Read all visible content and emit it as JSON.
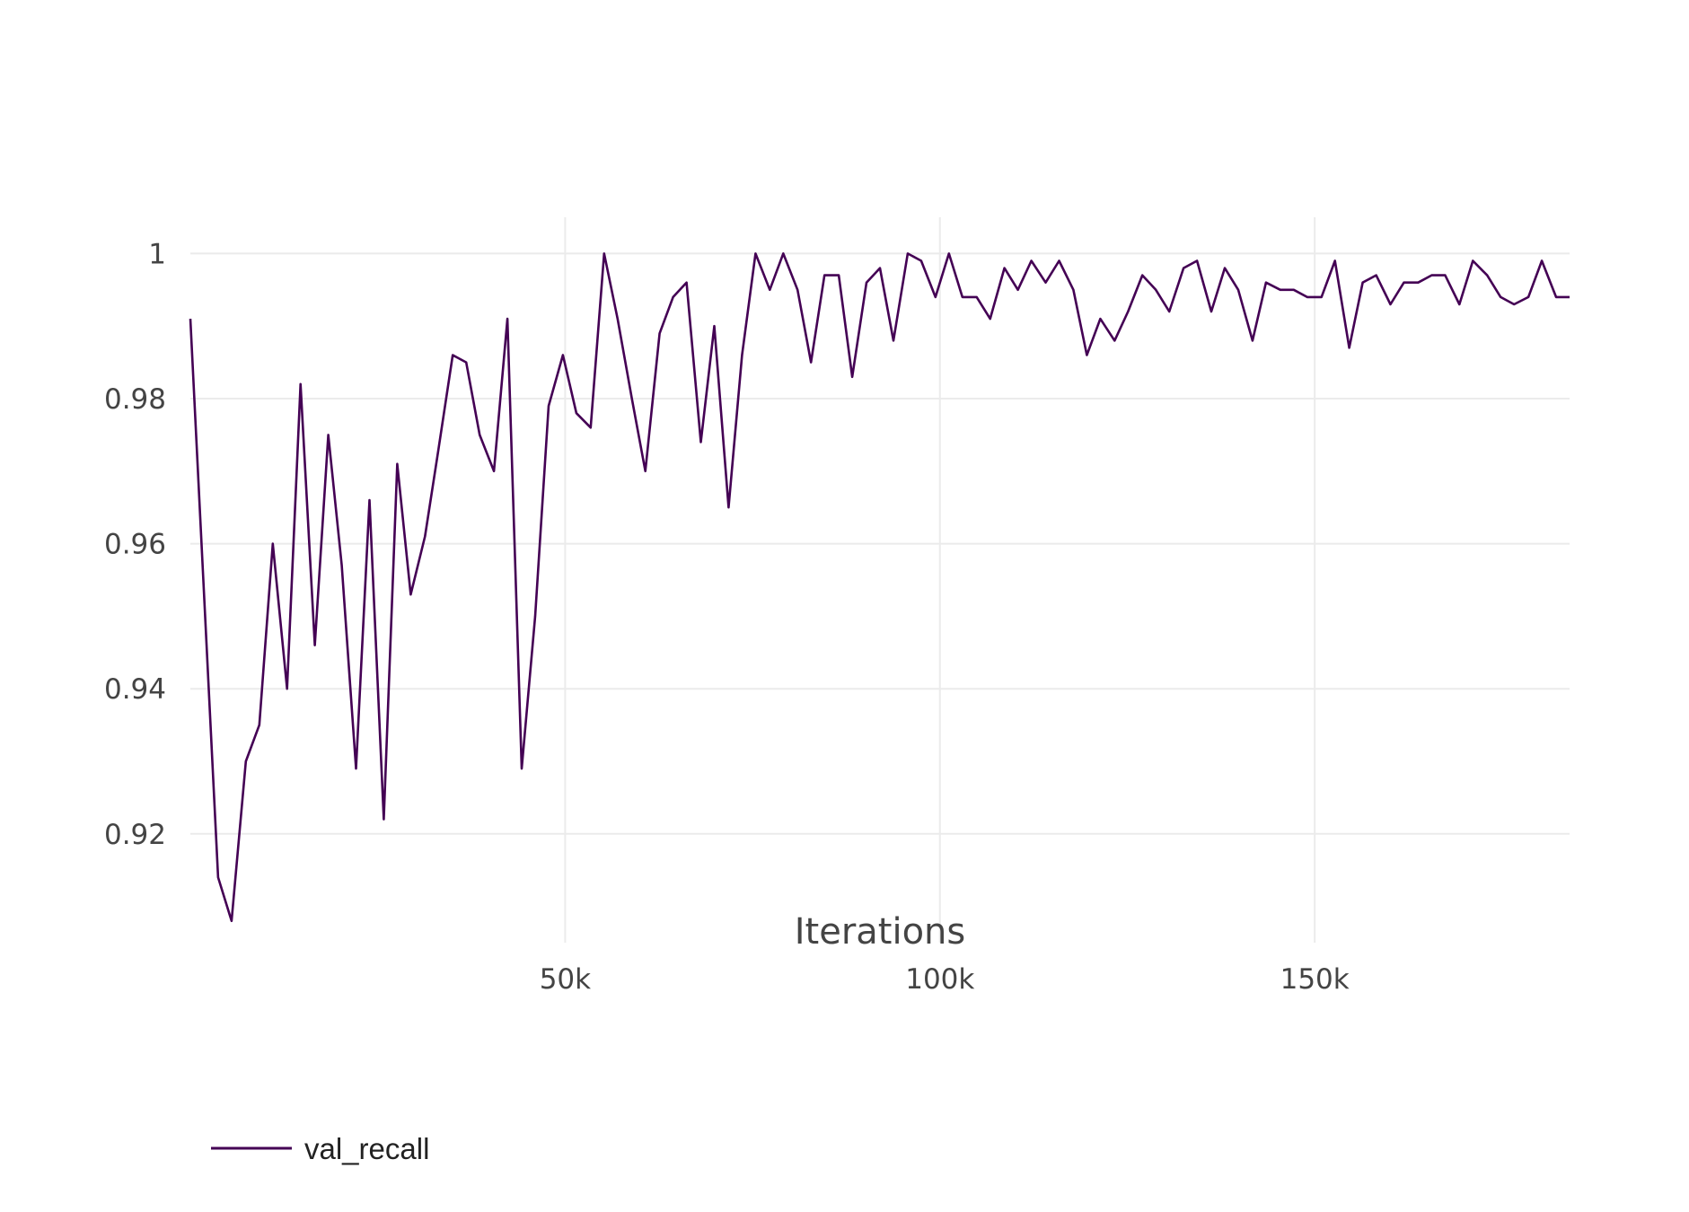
{
  "chart_data": {
    "type": "line",
    "xlabel": "Iterations",
    "ylabel": "",
    "xlim": [
      0,
      184000
    ],
    "ylim": [
      0.905,
      1.005
    ],
    "x_ticks": [
      {
        "value": 50000,
        "label": "50k"
      },
      {
        "value": 100000,
        "label": "100k"
      },
      {
        "value": 150000,
        "label": "150k"
      }
    ],
    "y_ticks": [
      {
        "value": 0.92,
        "label": "0.92"
      },
      {
        "value": 0.94,
        "label": "0.94"
      },
      {
        "value": 0.96,
        "label": "0.96"
      },
      {
        "value": 0.98,
        "label": "0.98"
      },
      {
        "value": 1.0,
        "label": "1"
      }
    ],
    "grid": true,
    "legend": {
      "position": "bottom-left"
    },
    "series": [
      {
        "name": "val_recall",
        "color": "#440154",
        "x": [
          0,
          3700,
          5500,
          7400,
          9200,
          11000,
          12900,
          14700,
          16600,
          18400,
          20200,
          22100,
          23900,
          25800,
          27600,
          29400,
          31300,
          33100,
          35000,
          36800,
          38600,
          40500,
          42300,
          44200,
          46000,
          47800,
          49700,
          51500,
          53400,
          55200,
          57000,
          58900,
          60700,
          62600,
          64400,
          66200,
          68100,
          69900,
          71800,
          73600,
          75400,
          77300,
          79100,
          81000,
          82800,
          84600,
          86500,
          88300,
          90200,
          92000,
          93800,
          95700,
          97500,
          99400,
          101200,
          103000,
          104900,
          106700,
          108600,
          110400,
          112200,
          114100,
          115900,
          117800,
          119600,
          121400,
          123300,
          125100,
          127000,
          128800,
          130600,
          132500,
          134300,
          136200,
          138000,
          139800,
          141700,
          143500,
          145400,
          147200,
          149000,
          150900,
          152700,
          154600,
          156400,
          158200,
          160100,
          161900,
          163800,
          165600,
          167400,
          169300,
          171100,
          173000,
          174800,
          176600,
          178500,
          180300,
          182200,
          184000
        ],
        "y": [
          0.991,
          0.914,
          0.908,
          0.93,
          0.935,
          0.96,
          0.94,
          0.982,
          0.946,
          0.975,
          0.957,
          0.929,
          0.966,
          0.922,
          0.971,
          0.953,
          0.961,
          0.973,
          0.986,
          0.985,
          0.975,
          0.97,
          0.991,
          0.929,
          0.95,
          0.979,
          0.986,
          0.978,
          0.976,
          1.0,
          0.991,
          0.98,
          0.97,
          0.989,
          0.994,
          0.996,
          0.974,
          0.99,
          0.965,
          0.986,
          1.0,
          0.995,
          1.0,
          0.995,
          0.985,
          0.997,
          0.997,
          0.983,
          0.996,
          0.998,
          0.988,
          1.0,
          0.999,
          0.994,
          1.0,
          0.994,
          0.994,
          0.991,
          0.998,
          0.995,
          0.999,
          0.996,
          0.999,
          0.995,
          0.986,
          0.991,
          0.988,
          0.992,
          0.997,
          0.995,
          0.992,
          0.998,
          0.999,
          0.992,
          0.998,
          0.995,
          0.988,
          0.996,
          0.995,
          0.995,
          0.994,
          0.994,
          0.999,
          0.987,
          0.996,
          0.997,
          0.993,
          0.996,
          0.996,
          0.997,
          0.997,
          0.993,
          0.999,
          0.997,
          0.994,
          0.993,
          0.994,
          0.999,
          0.994,
          0.994
        ]
      }
    ]
  }
}
